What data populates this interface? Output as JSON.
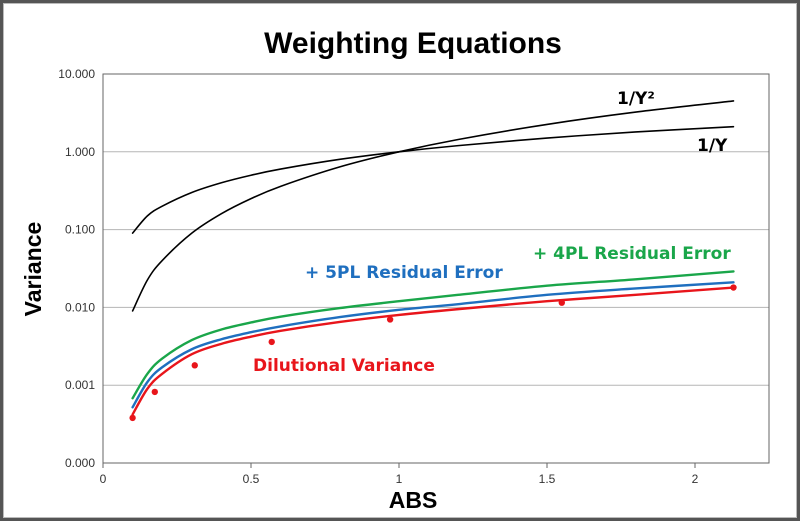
{
  "chart_data": {
    "type": "line",
    "title": "Weighting Equations",
    "xlabel": "ABS",
    "ylabel": "Variance",
    "xlim": [
      0,
      2.25
    ],
    "ylim": [
      0.0001,
      10
    ],
    "yscale": "log",
    "x_ticks": [
      0,
      0.5,
      1,
      1.5,
      2
    ],
    "x_tick_labels": [
      "0",
      "0.5",
      "1",
      "1.5",
      "2"
    ],
    "y_ticks": [
      0.0001,
      0.001,
      0.01,
      0.1,
      1,
      10
    ],
    "y_tick_labels": [
      "0.000",
      "0.001",
      "0.010",
      "0.100",
      "1.000",
      "10.000"
    ],
    "grid": "horizontal",
    "legend": "inline labels",
    "series": [
      {
        "name": "1/Y²",
        "color": "#000000",
        "x": [
          0.1,
          0.15,
          0.2,
          0.3,
          0.4,
          0.5,
          0.6,
          0.8,
          1.0,
          1.2,
          1.5,
          1.8,
          2.13
        ],
        "y": [
          0.009,
          0.0225,
          0.04,
          0.09,
          0.16,
          0.25,
          0.36,
          0.64,
          1.0,
          1.44,
          2.25,
          3.24,
          4.5
        ]
      },
      {
        "name": "1/Y",
        "color": "#000000",
        "x": [
          0.1,
          0.15,
          0.2,
          0.3,
          0.4,
          0.5,
          0.6,
          0.8,
          1.0,
          1.2,
          1.5,
          1.8,
          2.13
        ],
        "y": [
          0.09,
          0.15,
          0.2,
          0.3,
          0.4,
          0.5,
          0.6,
          0.8,
          1.0,
          1.2,
          1.5,
          1.8,
          2.1
        ]
      },
      {
        "name": "+ 4PL Residual Error",
        "color": "#1aa64a",
        "x": [
          0.1,
          0.15,
          0.2,
          0.3,
          0.4,
          0.5,
          0.6,
          0.8,
          1.0,
          1.2,
          1.5,
          1.8,
          2.13
        ],
        "y": [
          0.00068,
          0.0014,
          0.0022,
          0.0038,
          0.0052,
          0.0064,
          0.0076,
          0.0098,
          0.012,
          0.0145,
          0.019,
          0.023,
          0.029
        ]
      },
      {
        "name": "+ 5PL Residual Error",
        "color": "#1f6fbf",
        "x": [
          0.1,
          0.15,
          0.2,
          0.3,
          0.4,
          0.5,
          0.6,
          0.8,
          1.0,
          1.2,
          1.5,
          1.8,
          2.13
        ],
        "y": [
          0.00052,
          0.0011,
          0.0017,
          0.0029,
          0.0039,
          0.0048,
          0.0057,
          0.0075,
          0.0093,
          0.011,
          0.0145,
          0.0175,
          0.021
        ]
      },
      {
        "name": "Dilutional Variance",
        "color": "#e8151b",
        "x": [
          0.1,
          0.15,
          0.2,
          0.3,
          0.4,
          0.5,
          0.6,
          0.8,
          1.0,
          1.2,
          1.5,
          1.8,
          2.13
        ],
        "y": [
          0.00042,
          0.0009,
          0.0014,
          0.0025,
          0.0034,
          0.0042,
          0.005,
          0.0065,
          0.008,
          0.0095,
          0.012,
          0.0145,
          0.018
        ],
        "points_x": [
          0.1,
          0.175,
          0.31,
          0.57,
          0.97,
          1.55,
          2.13
        ],
        "points_y": [
          0.00038,
          0.00082,
          0.0018,
          0.0036,
          0.007,
          0.0115,
          0.018
        ]
      }
    ],
    "labels": {
      "y2": "1/Y²",
      "y1": "1/Y",
      "pl4": "+ 4PL Residual Error",
      "pl5": "+ 5PL Residual Error",
      "dil": "Dilutional Variance"
    }
  }
}
